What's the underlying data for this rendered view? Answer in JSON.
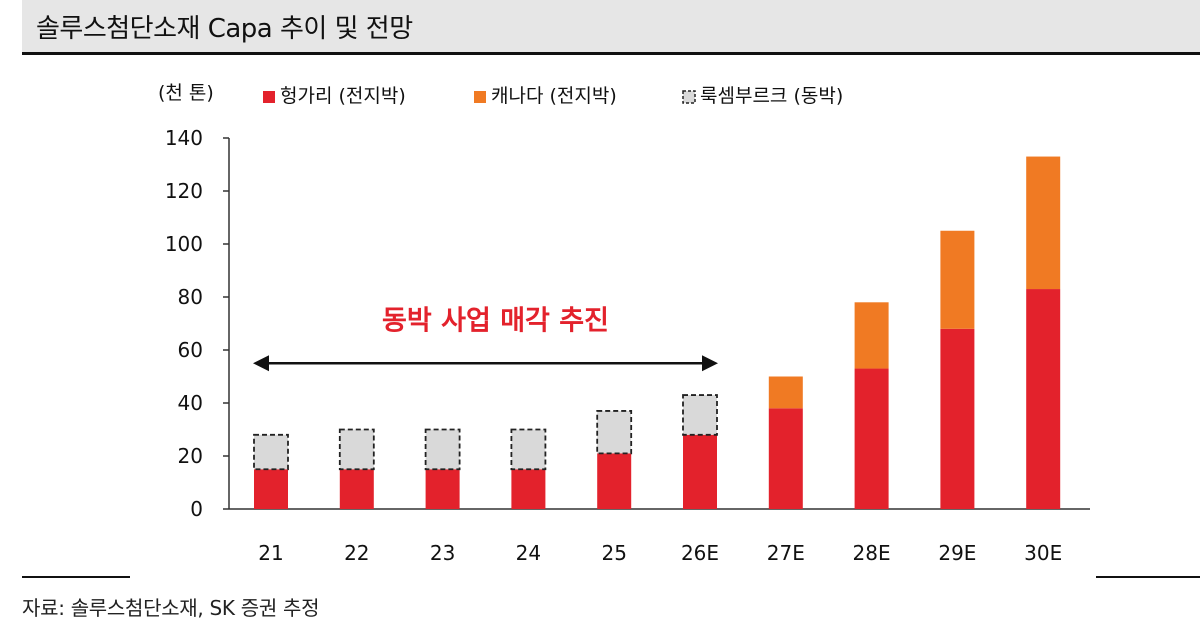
{
  "title": "솔루스첨단소재 Capa 추이 및 전망",
  "source": "자료: 솔루스첨단소재, SK 증권 추정",
  "colors": {
    "hungary": "#e3222c",
    "canada": "#f07a23",
    "luxembourg_fill": "#d9d9d9",
    "luxembourg_border": "#222222",
    "annotation": "#e3222c"
  },
  "chart_data": {
    "type": "bar",
    "stacked": true,
    "unit_label": "(천 톤)",
    "categories": [
      "21",
      "22",
      "23",
      "24",
      "25",
      "26E",
      "27E",
      "28E",
      "29E",
      "30E"
    ],
    "series": [
      {
        "name": "헝가리 (전지박)",
        "values": [
          15,
          15,
          15,
          15,
          21,
          28,
          38,
          53,
          68,
          83
        ]
      },
      {
        "name": "캐나다 (전지박)",
        "values": [
          0,
          0,
          0,
          0,
          0,
          0,
          12,
          25,
          37,
          50
        ]
      },
      {
        "name": "룩셈부르크 (동박)",
        "values": [
          13,
          15,
          15,
          15,
          16,
          15,
          0,
          0,
          0,
          0
        ]
      }
    ],
    "ylim": [
      0,
      140
    ],
    "yticks": [
      0,
      20,
      40,
      60,
      80,
      100,
      120,
      140
    ],
    "annotation": {
      "text": "동박 사업 매각 추진",
      "arrow_from": "21",
      "arrow_to": "26E",
      "arrow_y": 55
    },
    "grid": false,
    "legend_position": "top-left"
  }
}
